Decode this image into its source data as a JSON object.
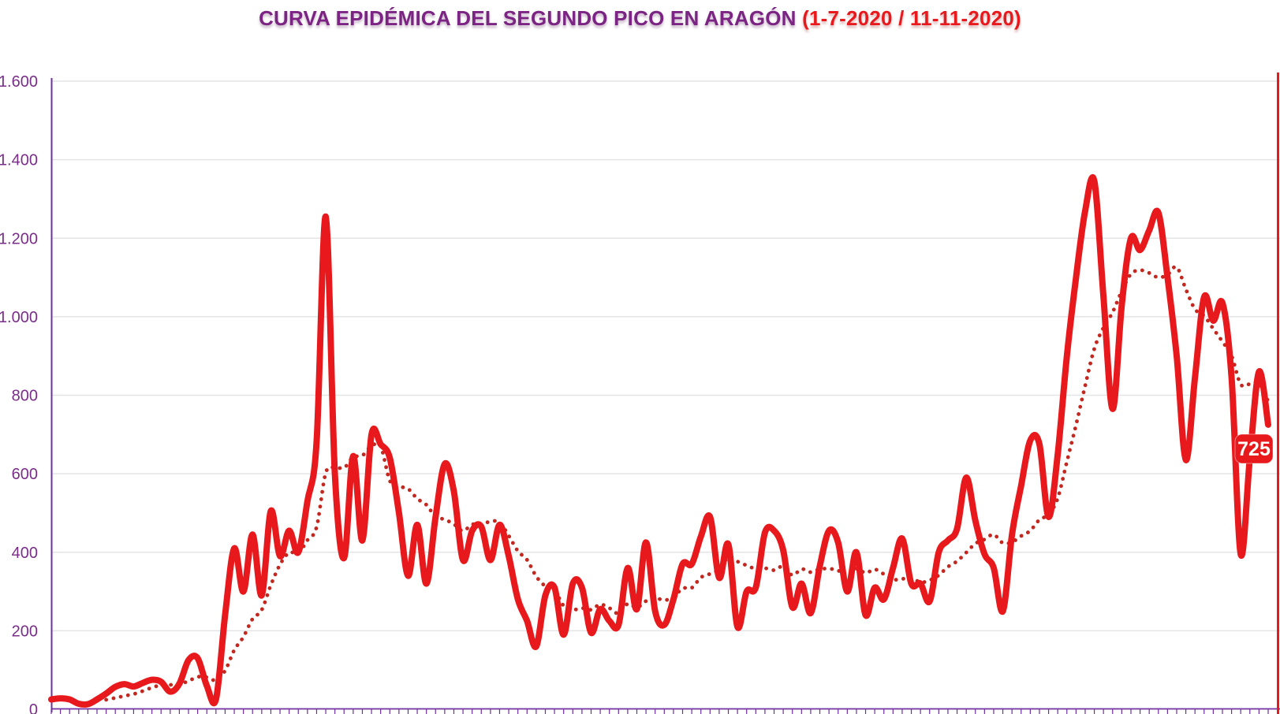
{
  "title": {
    "main": "CURVA EPIDÉMICA DEL SEGUNDO PICO EN ARAGÓN",
    "range": "(1-7-2020 / 11-11-2020)"
  },
  "end_label": {
    "value": "725"
  },
  "colors": {
    "title_purple": "#7b2483",
    "axis_purple": "#7030a0",
    "label_purple": "#7b2d8b",
    "line_red": "#e8191c",
    "avg_dot_red": "#c2281f",
    "grid_gray": "#e4e4e7",
    "end_marker_red": "#e8191c",
    "callout_bg": "#e8191c",
    "callout_text": "#ffffff"
  },
  "chart_data": {
    "type": "line",
    "title": "CURVA EPIDÉMICA DEL SEGUNDO PICO EN ARAGÓN",
    "subtitle_range": "(1-7-2020 / 11-11-2020)",
    "x_start_date": "1-7-2020",
    "x_end_date": "11-11-2020",
    "x_unit": "day",
    "n_points": 134,
    "ylim": [
      0,
      1600
    ],
    "ytick_step": 200,
    "ytick_labels": [
      "0",
      "200",
      "400",
      "600",
      "800",
      "1.000",
      "1.200",
      "1.400",
      "1.600"
    ],
    "grid": "horizontal",
    "legend": "none",
    "series": [
      {
        "id": "daily_cases",
        "style": "solid",
        "color": "#e8191c",
        "values": [
          25,
          28,
          25,
          14,
          13,
          25,
          40,
          57,
          64,
          58,
          67,
          75,
          70,
          45,
          65,
          125,
          130,
          60,
          25,
          240,
          410,
          300,
          445,
          290,
          505,
          390,
          455,
          400,
          530,
          680,
          1255,
          600,
          385,
          645,
          430,
          700,
          675,
          640,
          500,
          340,
          470,
          320,
          490,
          625,
          555,
          380,
          455,
          465,
          380,
          470,
          390,
          280,
          225,
          160,
          290,
          310,
          190,
          320,
          310,
          195,
          255,
          225,
          215,
          360,
          255,
          425,
          250,
          215,
          280,
          370,
          370,
          440,
          490,
          335,
          420,
          210,
          300,
          310,
          450,
          455,
          405,
          260,
          320,
          245,
          365,
          455,
          425,
          300,
          400,
          240,
          310,
          280,
          360,
          435,
          320,
          320,
          275,
          400,
          430,
          460,
          590,
          480,
          395,
          360,
          250,
          445,
          570,
          685,
          675,
          490,
          650,
          900,
          1100,
          1270,
          1345,
          1050,
          765,
          1030,
          1200,
          1170,
          1220,
          1265,
          1100,
          900,
          635,
          845,
          1050,
          990,
          1035,
          845,
          395,
          640,
          860,
          725
        ]
      },
      {
        "id": "avg_7d_dotted",
        "style": "dotted",
        "color": "#c2281f",
        "derived": "trailing 7-day mean of daily_cases"
      }
    ],
    "end_annotation": {
      "label": "725",
      "value": 725
    }
  }
}
